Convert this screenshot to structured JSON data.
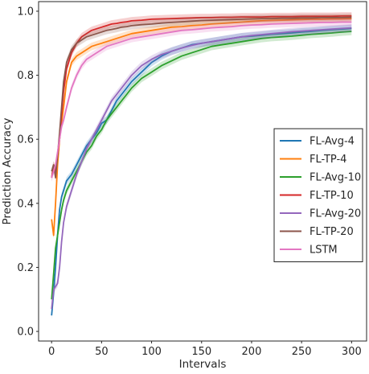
{
  "chart_data": {
    "type": "line",
    "title": "",
    "xlabel": "Intervals",
    "ylabel": "Prediction Accuracy",
    "xlim": [
      -13,
      315
    ],
    "ylim": [
      -0.03,
      1.03
    ],
    "xticks": [
      0,
      50,
      100,
      150,
      200,
      250,
      300
    ],
    "yticks": [
      0.0,
      0.2,
      0.4,
      0.6,
      0.8,
      1.0
    ],
    "xtick_labels": [
      "0",
      "50",
      "100",
      "150",
      "200",
      "250",
      "300"
    ],
    "ytick_labels": [
      "0.0",
      "0.2",
      "0.4",
      "0.6",
      "0.8",
      "1.0"
    ],
    "grid": false,
    "legend_position": "center-right",
    "x": [
      0,
      2,
      4,
      6,
      8,
      10,
      12,
      15,
      20,
      25,
      30,
      35,
      40,
      45,
      50,
      55,
      60,
      65,
      70,
      75,
      80,
      90,
      100,
      110,
      120,
      130,
      140,
      150,
      160,
      170,
      180,
      190,
      200,
      210,
      220,
      230,
      240,
      250,
      260,
      270,
      280,
      290,
      300
    ],
    "series": [
      {
        "name": "FL-Avg-4",
        "color": "#1f77b4",
        "values": [
          0.05,
          0.12,
          0.2,
          0.3,
          0.38,
          0.42,
          0.44,
          0.47,
          0.49,
          0.52,
          0.55,
          0.58,
          0.6,
          0.62,
          0.65,
          0.66,
          0.69,
          0.72,
          0.74,
          0.76,
          0.78,
          0.81,
          0.84,
          0.86,
          0.875,
          0.885,
          0.895,
          0.9,
          0.905,
          0.91,
          0.915,
          0.92,
          0.922,
          0.925,
          0.928,
          0.93,
          0.932,
          0.935,
          0.937,
          0.94,
          0.942,
          0.944,
          0.946
        ]
      },
      {
        "name": "FL-TP-4",
        "color": "#ff7f0e",
        "values": [
          0.35,
          0.3,
          0.4,
          0.52,
          0.6,
          0.65,
          0.7,
          0.78,
          0.84,
          0.86,
          0.87,
          0.88,
          0.89,
          0.895,
          0.9,
          0.905,
          0.91,
          0.915,
          0.92,
          0.925,
          0.93,
          0.935,
          0.94,
          0.945,
          0.95,
          0.952,
          0.955,
          0.957,
          0.96,
          0.962,
          0.964,
          0.966,
          0.968,
          0.97,
          0.971,
          0.972,
          0.973,
          0.974,
          0.975,
          0.975,
          0.976,
          0.976,
          0.977
        ]
      },
      {
        "name": "FL-Avg-10",
        "color": "#2ca02c",
        "values": [
          0.1,
          0.18,
          0.26,
          0.3,
          0.34,
          0.38,
          0.41,
          0.44,
          0.47,
          0.5,
          0.53,
          0.56,
          0.58,
          0.61,
          0.63,
          0.66,
          0.68,
          0.7,
          0.72,
          0.74,
          0.76,
          0.79,
          0.81,
          0.83,
          0.845,
          0.86,
          0.87,
          0.88,
          0.89,
          0.895,
          0.9,
          0.905,
          0.91,
          0.915,
          0.918,
          0.92,
          0.922,
          0.925,
          0.928,
          0.93,
          0.932,
          0.935,
          0.937
        ]
      },
      {
        "name": "FL-TP-10",
        "color": "#d62728",
        "values": [
          0.48,
          0.52,
          0.5,
          0.55,
          0.6,
          0.68,
          0.75,
          0.82,
          0.87,
          0.9,
          0.92,
          0.93,
          0.94,
          0.945,
          0.95,
          0.955,
          0.96,
          0.962,
          0.965,
          0.967,
          0.97,
          0.972,
          0.975,
          0.976,
          0.977,
          0.978,
          0.979,
          0.98,
          0.98,
          0.981,
          0.981,
          0.982,
          0.982,
          0.982,
          0.983,
          0.983,
          0.983,
          0.984,
          0.984,
          0.984,
          0.984,
          0.985,
          0.985
        ]
      },
      {
        "name": "FL-Avg-20",
        "color": "#9467bd",
        "values": [
          0.07,
          0.13,
          0.14,
          0.15,
          0.2,
          0.28,
          0.34,
          0.39,
          0.44,
          0.49,
          0.53,
          0.57,
          0.6,
          0.63,
          0.66,
          0.69,
          0.72,
          0.74,
          0.76,
          0.78,
          0.8,
          0.83,
          0.85,
          0.865,
          0.875,
          0.885,
          0.893,
          0.9,
          0.905,
          0.91,
          0.915,
          0.92,
          0.924,
          0.927,
          0.93,
          0.933,
          0.936,
          0.938,
          0.94,
          0.942,
          0.944,
          0.946,
          0.948
        ]
      },
      {
        "name": "FL-TP-20",
        "color": "#8c564b",
        "values": [
          0.5,
          0.52,
          0.48,
          0.55,
          0.62,
          0.7,
          0.78,
          0.84,
          0.88,
          0.9,
          0.91,
          0.92,
          0.925,
          0.93,
          0.935,
          0.94,
          0.943,
          0.946,
          0.95,
          0.952,
          0.955,
          0.958,
          0.96,
          0.963,
          0.965,
          0.967,
          0.969,
          0.971,
          0.972,
          0.973,
          0.974,
          0.975,
          0.976,
          0.977,
          0.977,
          0.978,
          0.978,
          0.979,
          0.979,
          0.98,
          0.98,
          0.98,
          0.981
        ]
      },
      {
        "name": "LSTM",
        "color": "#e377c2",
        "values": [
          0.48,
          0.5,
          0.52,
          0.56,
          0.6,
          0.64,
          0.66,
          0.7,
          0.76,
          0.8,
          0.83,
          0.85,
          0.86,
          0.87,
          0.88,
          0.89,
          0.895,
          0.9,
          0.905,
          0.91,
          0.915,
          0.92,
          0.925,
          0.93,
          0.935,
          0.94,
          0.942,
          0.945,
          0.948,
          0.95,
          0.952,
          0.955,
          0.957,
          0.958,
          0.96,
          0.961,
          0.962,
          0.963,
          0.964,
          0.965,
          0.965,
          0.966,
          0.966
        ]
      }
    ]
  }
}
